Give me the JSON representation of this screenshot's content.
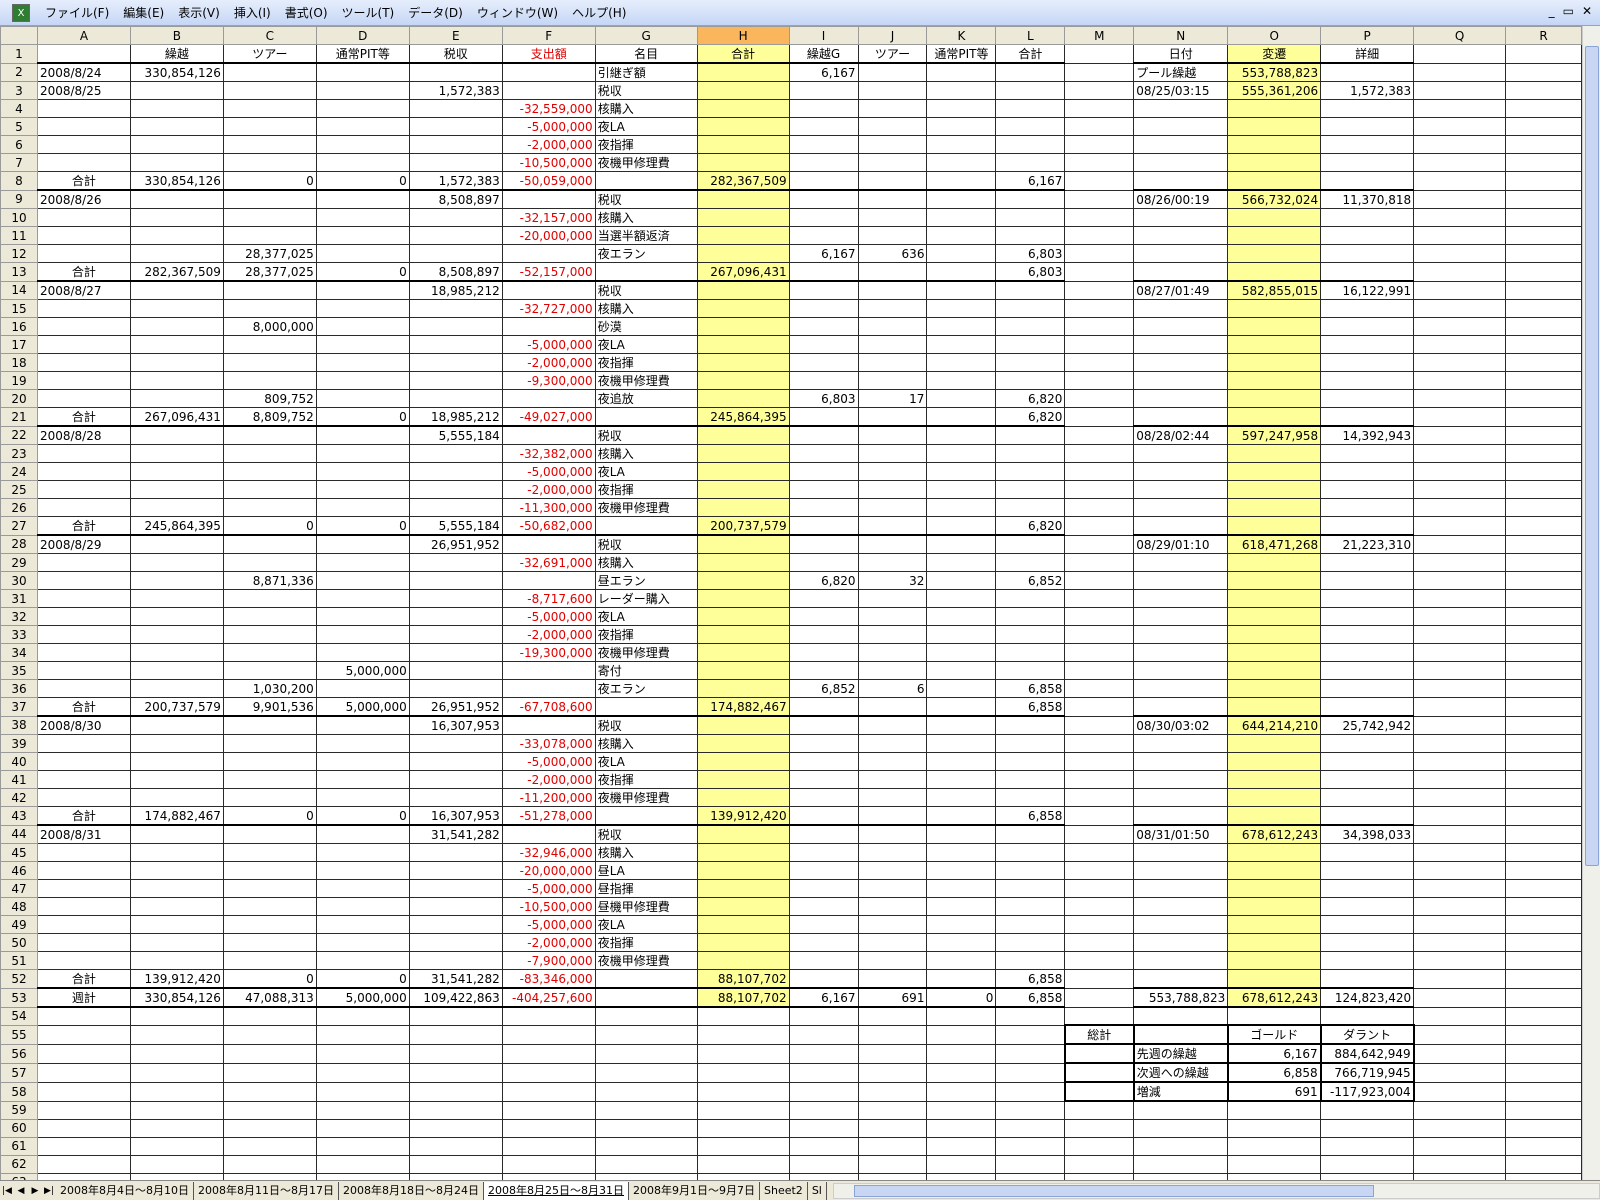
{
  "menu": [
    "ファイル(F)",
    "編集(E)",
    "表示(V)",
    "挿入(I)",
    "書式(O)",
    "ツール(T)",
    "データ(D)",
    "ウィンドウ(W)",
    "ヘルプ(H)"
  ],
  "window_controls": [
    "_",
    "▭",
    "✕"
  ],
  "columns": [
    "A",
    "B",
    "C",
    "D",
    "E",
    "F",
    "G",
    "H",
    "I",
    "J",
    "K",
    "L",
    "M",
    "N",
    "O",
    "P",
    "Q",
    "R"
  ],
  "selected_column": "H",
  "colors": {
    "negative": "#e00000",
    "highlight": "#ffff99",
    "selected_header": "#f9b65d"
  },
  "row_count": 63,
  "rows": {
    "1": {
      "B": "繰越",
      "C": "ツアー",
      "D": "通常PIT等",
      "E": "税収",
      "F": "支出額",
      "G": "名目",
      "H": "合計",
      "I": "繰越G",
      "J": "ツアー",
      "K": "通常PIT等",
      "L": "合計",
      "N": "日付",
      "O": "変遷",
      "P": "詳細"
    },
    "2": {
      "A": "2008/8/24",
      "B": "330,854,126",
      "G": "引継ぎ額",
      "I": "6,167",
      "N": "プール繰越",
      "O": "553,788,823"
    },
    "3": {
      "A": "2008/8/25",
      "E": "1,572,383",
      "G": "税収",
      "N": "08/25/03:15",
      "O": "555,361,206",
      "P": "1,572,383"
    },
    "4": {
      "F": "-32,559,000",
      "G": "核購入"
    },
    "5": {
      "F": "-5,000,000",
      "G": "夜LA"
    },
    "6": {
      "F": "-2,000,000",
      "G": "夜指揮"
    },
    "7": {
      "F": "-10,500,000",
      "G": "夜機甲修理費"
    },
    "8": {
      "A": "合計",
      "B": "330,854,126",
      "C": "0",
      "D": "0",
      "E": "1,572,383",
      "F": "-50,059,000",
      "H": "282,367,509",
      "L": "6,167"
    },
    "9": {
      "A": "2008/8/26",
      "E": "8,508,897",
      "G": "税収",
      "N": "08/26/00:19",
      "O": "566,732,024",
      "P": "11,370,818"
    },
    "10": {
      "F": "-32,157,000",
      "G": "核購入"
    },
    "11": {
      "F": "-20,000,000",
      "G": "当選半額返済"
    },
    "12": {
      "C": "28,377,025",
      "G": "夜エラン",
      "I": "6,167",
      "J": "636",
      "L": "6,803"
    },
    "13": {
      "A": "合計",
      "B": "282,367,509",
      "C": "28,377,025",
      "D": "0",
      "E": "8,508,897",
      "F": "-52,157,000",
      "H": "267,096,431",
      "L": "6,803"
    },
    "14": {
      "A": "2008/8/27",
      "E": "18,985,212",
      "G": "税収",
      "N": "08/27/01:49",
      "O": "582,855,015",
      "P": "16,122,991"
    },
    "15": {
      "F": "-32,727,000",
      "G": "核購入"
    },
    "16": {
      "C": "8,000,000",
      "G": "砂漠"
    },
    "17": {
      "F": "-5,000,000",
      "G": "夜LA"
    },
    "18": {
      "F": "-2,000,000",
      "G": "夜指揮"
    },
    "19": {
      "F": "-9,300,000",
      "G": "夜機甲修理費"
    },
    "20": {
      "C": "809,752",
      "G": "夜追放",
      "I": "6,803",
      "J": "17",
      "L": "6,820"
    },
    "21": {
      "A": "合計",
      "B": "267,096,431",
      "C": "8,809,752",
      "D": "0",
      "E": "18,985,212",
      "F": "-49,027,000",
      "H": "245,864,395",
      "L": "6,820"
    },
    "22": {
      "A": "2008/8/28",
      "E": "5,555,184",
      "G": "税収",
      "N": "08/28/02:44",
      "O": "597,247,958",
      "P": "14,392,943"
    },
    "23": {
      "F": "-32,382,000",
      "G": "核購入"
    },
    "24": {
      "F": "-5,000,000",
      "G": "夜LA"
    },
    "25": {
      "F": "-2,000,000",
      "G": "夜指揮"
    },
    "26": {
      "F": "-11,300,000",
      "G": "夜機甲修理費"
    },
    "27": {
      "A": "合計",
      "B": "245,864,395",
      "C": "0",
      "D": "0",
      "E": "5,555,184",
      "F": "-50,682,000",
      "H": "200,737,579",
      "L": "6,820"
    },
    "28": {
      "A": "2008/8/29",
      "E": "26,951,952",
      "G": "税収",
      "N": "08/29/01:10",
      "O": "618,471,268",
      "P": "21,223,310"
    },
    "29": {
      "F": "-32,691,000",
      "G": "核購入"
    },
    "30": {
      "C": "8,871,336",
      "G": "昼エラン",
      "I": "6,820",
      "J": "32",
      "L": "6,852"
    },
    "31": {
      "F": "-8,717,600",
      "G": "レーダー購入"
    },
    "32": {
      "F": "-5,000,000",
      "G": "夜LA"
    },
    "33": {
      "F": "-2,000,000",
      "G": "夜指揮"
    },
    "34": {
      "F": "-19,300,000",
      "G": "夜機甲修理費"
    },
    "35": {
      "D": "5,000,000",
      "G": "寄付"
    },
    "36": {
      "C": "1,030,200",
      "G": "夜エラン",
      "I": "6,852",
      "J": "6",
      "L": "6,858"
    },
    "37": {
      "A": "合計",
      "B": "200,737,579",
      "C": "9,901,536",
      "D": "5,000,000",
      "E": "26,951,952",
      "F": "-67,708,600",
      "H": "174,882,467",
      "L": "6,858"
    },
    "38": {
      "A": "2008/8/30",
      "E": "16,307,953",
      "G": "税収",
      "N": "08/30/03:02",
      "O": "644,214,210",
      "P": "25,742,942"
    },
    "39": {
      "F": "-33,078,000",
      "G": "核購入"
    },
    "40": {
      "F": "-5,000,000",
      "G": "夜LA"
    },
    "41": {
      "F": "-2,000,000",
      "G": "夜指揮"
    },
    "42": {
      "F": "-11,200,000",
      "G": "夜機甲修理費"
    },
    "43": {
      "A": "合計",
      "B": "174,882,467",
      "C": "0",
      "D": "0",
      "E": "16,307,953",
      "F": "-51,278,000",
      "H": "139,912,420",
      "L": "6,858"
    },
    "44": {
      "A": "2008/8/31",
      "E": "31,541,282",
      "G": "税収",
      "N": "08/31/01:50",
      "O": "678,612,243",
      "P": "34,398,033"
    },
    "45": {
      "F": "-32,946,000",
      "G": "核購入"
    },
    "46": {
      "F": "-20,000,000",
      "G": "昼LA"
    },
    "47": {
      "F": "-5,000,000",
      "G": "昼指揮"
    },
    "48": {
      "F": "-10,500,000",
      "G": "昼機甲修理費"
    },
    "49": {
      "F": "-5,000,000",
      "G": "夜LA"
    },
    "50": {
      "F": "-2,000,000",
      "G": "夜指揮"
    },
    "51": {
      "F": "-7,900,000",
      "G": "夜機甲修理費"
    },
    "52": {
      "A": "合計",
      "B": "139,912,420",
      "C": "0",
      "D": "0",
      "E": "31,541,282",
      "F": "-83,346,000",
      "H": "88,107,702",
      "L": "6,858"
    },
    "53": {
      "A": "週計",
      "B": "330,854,126",
      "C": "47,088,313",
      "D": "5,000,000",
      "E": "109,422,863",
      "F": "-404,257,600",
      "H": "88,107,702",
      "I": "6,167",
      "J": "691",
      "K": "0",
      "L": "6,858",
      "N": "553,788,823",
      "O": "678,612,243",
      "P": "124,823,420"
    },
    "55": {
      "M": "総計",
      "O": "ゴールド",
      "P": "ダラント"
    },
    "56": {
      "N": "先週の繰越",
      "O": "6,167",
      "P": "884,642,949"
    },
    "57": {
      "N": "次週への繰越",
      "O": "6,858",
      "P": "766,719,945"
    },
    "58": {
      "N": "増減",
      "O": "691",
      "P": "-117,923,004"
    }
  },
  "sheet_tabs": [
    "2008年8月4日～8月10日",
    "2008年8月11日～8月17日",
    "2008年8月18日～8月24日",
    "2008年8月25日～8月31日",
    "2008年9月1日～9月7日",
    "Sheet2",
    "Sl"
  ],
  "active_tab": "2008年8月25日～8月31日"
}
